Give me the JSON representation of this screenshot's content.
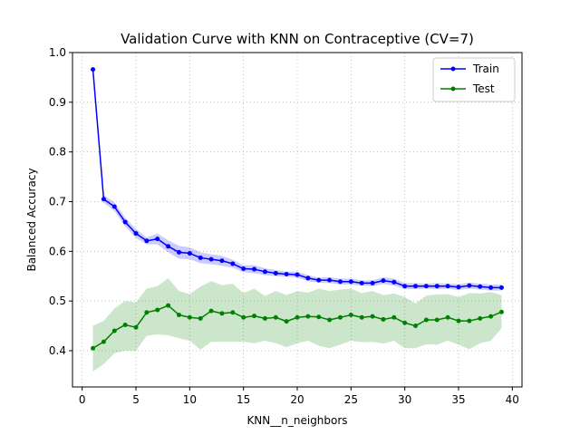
{
  "chart_data": {
    "type": "line",
    "title": "Validation Curve with KNN on Contraceptive (CV=7)",
    "xlabel": "KNN__n_neighbors",
    "ylabel": "Balanced Accuracy",
    "xlim": [
      -0.9,
      40.9
    ],
    "ylim": [
      0.327,
      1.0
    ],
    "xticks": [
      0,
      5,
      10,
      15,
      20,
      25,
      30,
      35,
      40
    ],
    "yticks": [
      0.4,
      0.5,
      0.6,
      0.7,
      0.8,
      0.9,
      1.0
    ],
    "xtick_labels": [
      "0",
      "5",
      "10",
      "15",
      "20",
      "25",
      "30",
      "35",
      "40"
    ],
    "ytick_labels": [
      "0.4",
      "0.5",
      "0.6",
      "0.7",
      "0.8",
      "0.9",
      "1.0"
    ],
    "grid": true,
    "legend_position": "top-right",
    "x": [
      1,
      2,
      3,
      4,
      5,
      6,
      7,
      8,
      9,
      10,
      11,
      12,
      13,
      14,
      15,
      16,
      17,
      18,
      19,
      20,
      21,
      22,
      23,
      24,
      25,
      26,
      27,
      28,
      29,
      30,
      31,
      32,
      33,
      34,
      35,
      36,
      37,
      38,
      39
    ],
    "series": [
      {
        "name": "Train",
        "color": "#0000ff",
        "band_color": "#0000ff",
        "values": [
          0.966,
          0.705,
          0.69,
          0.659,
          0.636,
          0.621,
          0.625,
          0.61,
          0.598,
          0.596,
          0.587,
          0.584,
          0.581,
          0.575,
          0.565,
          0.564,
          0.559,
          0.556,
          0.554,
          0.553,
          0.546,
          0.542,
          0.542,
          0.539,
          0.539,
          0.536,
          0.536,
          0.541,
          0.538,
          0.53,
          0.53,
          0.53,
          0.53,
          0.53,
          0.528,
          0.531,
          0.529,
          0.527,
          0.527
        ],
        "lower": [
          0.966,
          0.698,
          0.681,
          0.65,
          0.627,
          0.614,
          0.614,
          0.598,
          0.585,
          0.584,
          0.576,
          0.574,
          0.571,
          0.567,
          0.558,
          0.556,
          0.552,
          0.55,
          0.549,
          0.547,
          0.54,
          0.537,
          0.536,
          0.533,
          0.533,
          0.531,
          0.53,
          0.534,
          0.531,
          0.524,
          0.524,
          0.525,
          0.524,
          0.525,
          0.522,
          0.525,
          0.523,
          0.521,
          0.521
        ],
        "upper": [
          0.966,
          0.713,
          0.699,
          0.668,
          0.645,
          0.628,
          0.636,
          0.622,
          0.611,
          0.608,
          0.598,
          0.594,
          0.591,
          0.583,
          0.572,
          0.572,
          0.566,
          0.562,
          0.559,
          0.559,
          0.552,
          0.547,
          0.548,
          0.545,
          0.545,
          0.541,
          0.542,
          0.548,
          0.545,
          0.536,
          0.536,
          0.535,
          0.536,
          0.535,
          0.534,
          0.537,
          0.535,
          0.533,
          0.533
        ]
      },
      {
        "name": "Test",
        "color": "#008000",
        "band_color": "#008000",
        "values": [
          0.405,
          0.418,
          0.44,
          0.452,
          0.447,
          0.477,
          0.482,
          0.491,
          0.472,
          0.467,
          0.465,
          0.48,
          0.475,
          0.477,
          0.467,
          0.47,
          0.465,
          0.467,
          0.459,
          0.467,
          0.469,
          0.468,
          0.462,
          0.467,
          0.472,
          0.467,
          0.469,
          0.463,
          0.467,
          0.456,
          0.45,
          0.462,
          0.462,
          0.467,
          0.46,
          0.46,
          0.465,
          0.469,
          0.478
        ],
        "lower": [
          0.358,
          0.373,
          0.395,
          0.4,
          0.4,
          0.43,
          0.433,
          0.431,
          0.425,
          0.42,
          0.402,
          0.418,
          0.418,
          0.418,
          0.418,
          0.415,
          0.42,
          0.415,
          0.407,
          0.415,
          0.42,
          0.41,
          0.405,
          0.412,
          0.42,
          0.417,
          0.418,
          0.414,
          0.42,
          0.405,
          0.405,
          0.413,
          0.412,
          0.42,
          0.412,
          0.403,
          0.415,
          0.42,
          0.445
        ],
        "upper": [
          0.45,
          0.46,
          0.485,
          0.5,
          0.497,
          0.525,
          0.53,
          0.546,
          0.52,
          0.514,
          0.529,
          0.54,
          0.532,
          0.535,
          0.516,
          0.525,
          0.51,
          0.52,
          0.512,
          0.52,
          0.517,
          0.525,
          0.52,
          0.523,
          0.525,
          0.516,
          0.52,
          0.512,
          0.515,
          0.508,
          0.495,
          0.511,
          0.513,
          0.514,
          0.508,
          0.516,
          0.515,
          0.518,
          0.512
        ]
      }
    ]
  }
}
